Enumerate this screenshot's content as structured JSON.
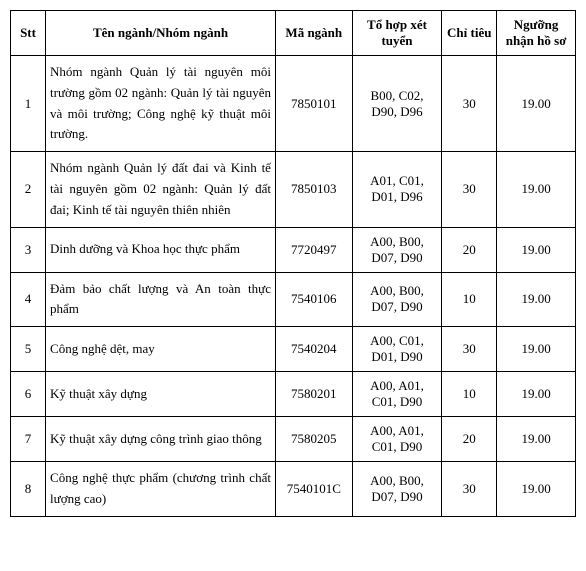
{
  "table": {
    "headers": {
      "stt": "Stt",
      "name": "Tên ngành/Nhóm ngành",
      "code": "Mã ngành",
      "combo": "Tổ hợp xét tuyển",
      "quota": "Chỉ tiêu",
      "threshold": "Ngưỡng nhận hồ sơ"
    },
    "rows": [
      {
        "stt": "1",
        "name": "Nhóm ngành Quản lý tài nguyên môi trường gồm 02 ngành: Quản lý tài nguyên và môi trường; Công nghệ kỹ thuật môi trường.",
        "code": "7850101",
        "combo": "B00, C02, D90, D96",
        "quota": "30",
        "threshold": "19.00"
      },
      {
        "stt": "2",
        "name": "Nhóm ngành Quản lý đất đai và Kinh tế tài nguyên gồm 02 ngành: Quản lý đất đai; Kinh tế tài nguyên thiên nhiên",
        "code": "7850103",
        "combo": "A01, C01, D01, D96",
        "quota": "30",
        "threshold": "19.00"
      },
      {
        "stt": "3",
        "name": "Dinh dưỡng và Khoa học thực phẩm",
        "code": "7720497",
        "combo": "A00, B00, D07, D90",
        "quota": "20",
        "threshold": "19.00"
      },
      {
        "stt": "4",
        "name": "Đảm bảo chất lượng và An toàn thực phẩm",
        "code": "7540106",
        "combo": "A00, B00, D07, D90",
        "quota": "10",
        "threshold": "19.00"
      },
      {
        "stt": "5",
        "name": "Công nghệ dệt, may",
        "code": "7540204",
        "combo": "A00, C01, D01, D90",
        "quota": "30",
        "threshold": "19.00"
      },
      {
        "stt": "6",
        "name": "Kỹ thuật xây dựng",
        "code": "7580201",
        "combo": "A00, A01, C01, D90",
        "quota": "10",
        "threshold": "19.00"
      },
      {
        "stt": "7",
        "name": "Kỹ thuật xây dựng công trình giao thông",
        "code": "7580205",
        "combo": "A00, A01, C01, D90",
        "quota": "20",
        "threshold": "19.00"
      },
      {
        "stt": "8",
        "name": "Công nghệ thực phẩm (chương trình chất lượng cao)",
        "code": "7540101C",
        "combo": "A00, B00, D07, D90",
        "quota": "30",
        "threshold": "19.00"
      }
    ],
    "colors": {
      "border": "#000000",
      "background": "#ffffff",
      "text": "#000000"
    },
    "fonts": {
      "family": "Times New Roman",
      "header_size": 13,
      "body_size": 13
    }
  }
}
